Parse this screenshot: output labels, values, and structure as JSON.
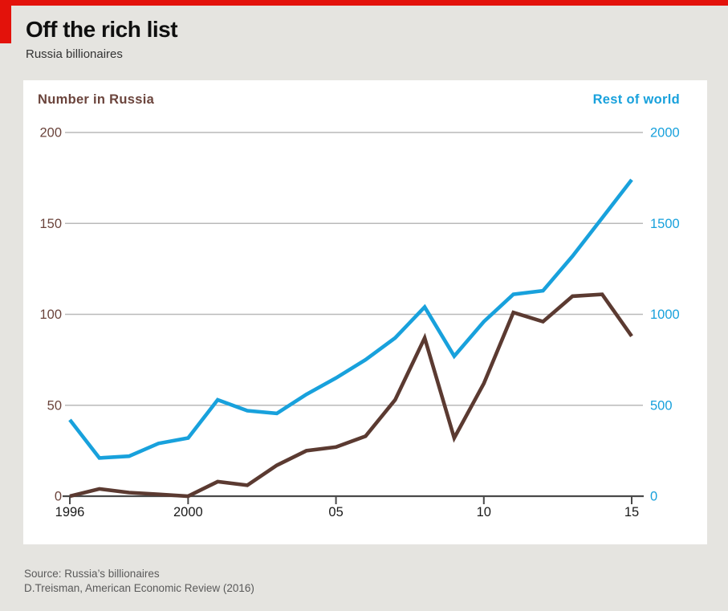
{
  "header": {
    "title": "Off the rich list",
    "subtitle": "Russia billionaires"
  },
  "chart_data": {
    "type": "line",
    "x": [
      1996,
      1997,
      1998,
      1999,
      2000,
      2001,
      2002,
      2003,
      2004,
      2005,
      2006,
      2007,
      2008,
      2009,
      2010,
      2011,
      2012,
      2013,
      2014,
      2015
    ],
    "series": [
      {
        "name": "Number in Russia",
        "axis": "left",
        "color": "#5b3a31",
        "values": [
          0,
          4,
          2,
          1,
          0,
          8,
          6,
          17,
          25,
          27,
          33,
          53,
          87,
          32,
          62,
          101,
          96,
          110,
          111,
          88
        ]
      },
      {
        "name": "Rest of world",
        "axis": "right",
        "color": "#18a1dc",
        "values": [
          420,
          210,
          220,
          290,
          320,
          530,
          470,
          455,
          560,
          650,
          750,
          870,
          1040,
          770,
          960,
          1110,
          1130,
          1320,
          1530,
          1740
        ]
      }
    ],
    "left_axis": {
      "label": "Number in Russia",
      "color": "#6b443c",
      "ticks": [
        0,
        50,
        100,
        150,
        200
      ],
      "range": [
        0,
        200
      ]
    },
    "right_axis": {
      "label": "Rest of world",
      "color": "#18a1dc",
      "ticks": [
        0,
        500,
        1000,
        1500,
        2000
      ],
      "range": [
        0,
        2000
      ]
    },
    "x_ticks": [
      {
        "year": 1996,
        "label": "1996"
      },
      {
        "year": 2000,
        "label": "2000"
      },
      {
        "year": 2005,
        "label": "05"
      },
      {
        "year": 2010,
        "label": "10"
      },
      {
        "year": 2015,
        "label": "15"
      }
    ],
    "grid": true,
    "legend_position": "axis-titles-top"
  },
  "footer": {
    "source_line1": "Source: Russia’s billionaires",
    "source_line2": "D.Treisman, American Economic Review (2016)"
  },
  "colors": {
    "accent_red": "#e3120b",
    "page_background": "#e5e4e0",
    "panel_background": "#ffffff",
    "gridline": "#b9b9b9",
    "axis_line": "#4a4a4a",
    "x_label": "#1a1a1a"
  }
}
